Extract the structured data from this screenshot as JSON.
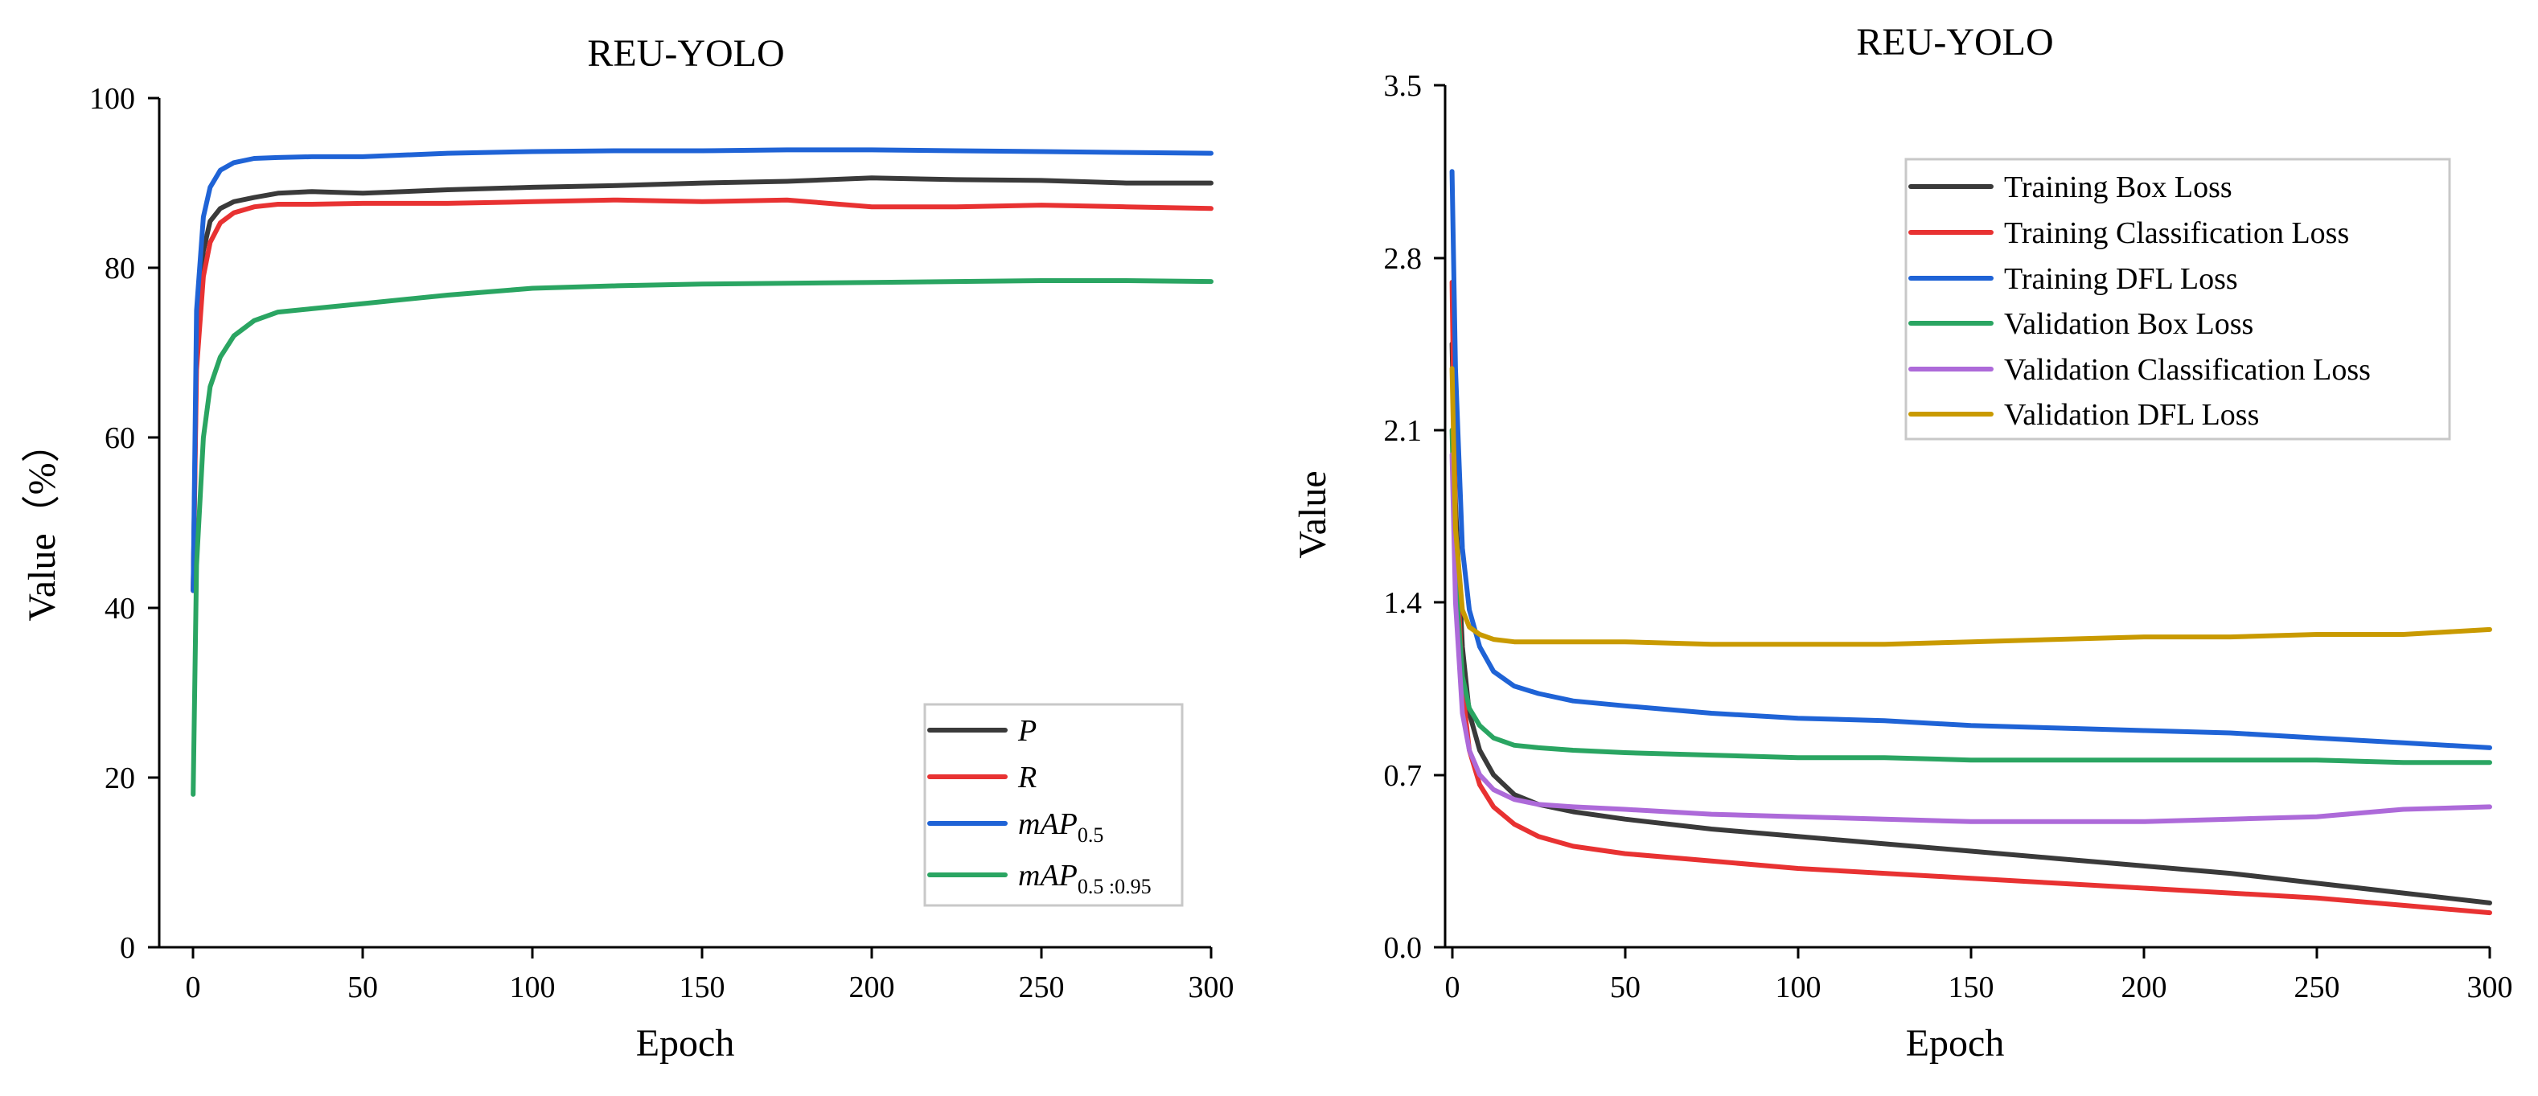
{
  "colors": {
    "P": "#3a3a3a",
    "R": "#e83232",
    "mAP_0_5": "#1f63d6",
    "mAP_0_5_0_95": "#2aa562",
    "training_box_loss": "#3a3a3a",
    "training_classification_loss": "#e83232",
    "training_dfl_loss": "#1f63d6",
    "validation_box_loss": "#2aa562",
    "validation_classification_loss": "#ad6ad9",
    "validation_dfl_loss": "#c99a00"
  },
  "chart_data": [
    {
      "type": "line",
      "title": "REU-YOLO",
      "xlabel": "Epoch",
      "ylabel": "Value（%）",
      "xlim": [
        -10,
        300
      ],
      "ylim": [
        0,
        100
      ],
      "xticks": [
        "0",
        "50",
        "100",
        "150",
        "200",
        "250",
        "300"
      ],
      "yticks": [
        "0",
        "20",
        "40",
        "60",
        "80",
        "100"
      ],
      "legend_position": "bottom-right",
      "legend": [
        {
          "base": "P",
          "sub": ""
        },
        {
          "base": "R",
          "sub": ""
        },
        {
          "base": "mAP",
          "sub": "0.5"
        },
        {
          "base": "mAP",
          "sub": "0.5 :0.95"
        }
      ],
      "series": [
        {
          "name": "P",
          "color_key": "P",
          "x": [
            0,
            1,
            3,
            5,
            8,
            12,
            18,
            25,
            35,
            50,
            75,
            100,
            125,
            150,
            175,
            200,
            225,
            250,
            275,
            300
          ],
          "values": [
            42,
            70,
            82,
            85.5,
            87,
            87.8,
            88.3,
            88.8,
            89,
            88.8,
            89.2,
            89.5,
            89.7,
            90,
            90.2,
            90.6,
            90.4,
            90.3,
            90,
            90
          ]
        },
        {
          "name": "R",
          "color_key": "R",
          "x": [
            0,
            1,
            3,
            5,
            8,
            12,
            18,
            25,
            35,
            50,
            75,
            100,
            125,
            150,
            175,
            200,
            225,
            250,
            275,
            300
          ],
          "values": [
            42,
            68,
            79,
            83,
            85.3,
            86.5,
            87.2,
            87.5,
            87.5,
            87.6,
            87.6,
            87.8,
            88,
            87.8,
            88,
            87.2,
            87.2,
            87.4,
            87.2,
            87
          ]
        },
        {
          "name": "mAP0.5",
          "color_key": "mAP_0_5",
          "x": [
            0,
            1,
            3,
            5,
            8,
            12,
            18,
            25,
            35,
            50,
            75,
            100,
            125,
            150,
            175,
            200,
            225,
            250,
            275,
            300
          ],
          "values": [
            42,
            75,
            86,
            89.5,
            91.5,
            92.4,
            92.9,
            93,
            93.1,
            93.1,
            93.5,
            93.7,
            93.8,
            93.8,
            93.9,
            93.9,
            93.8,
            93.7,
            93.6,
            93.5
          ]
        },
        {
          "name": "mAP0.5:0.95",
          "color_key": "mAP_0_5_0_95",
          "x": [
            0,
            1,
            3,
            5,
            8,
            12,
            18,
            25,
            35,
            50,
            75,
            100,
            125,
            150,
            175,
            200,
            225,
            250,
            275,
            300
          ],
          "values": [
            18,
            45,
            60,
            66,
            69.5,
            72,
            73.8,
            74.8,
            75.2,
            75.8,
            76.8,
            77.6,
            77.9,
            78.1,
            78.2,
            78.3,
            78.4,
            78.5,
            78.5,
            78.4
          ]
        }
      ]
    },
    {
      "type": "line",
      "title": "REU-YOLO",
      "xlabel": "Epoch",
      "ylabel": "Value",
      "xlim": [
        -2,
        300
      ],
      "ylim": [
        0,
        3.5
      ],
      "xticks": [
        "0",
        "50",
        "100",
        "150",
        "200",
        "250",
        "300"
      ],
      "yticks": [
        "0.0",
        "0.7",
        "1.4",
        "2.1",
        "2.8",
        "3.5"
      ],
      "legend_position": "top-right",
      "legend": [
        {
          "base": "Training Box Loss",
          "sub": ""
        },
        {
          "base": "Training Classification Loss",
          "sub": ""
        },
        {
          "base": "Training DFL Loss",
          "sub": ""
        },
        {
          "base": "Validation Box Loss",
          "sub": ""
        },
        {
          "base": "Validation Classification Loss",
          "sub": ""
        },
        {
          "base": "Validation DFL Loss",
          "sub": ""
        }
      ],
      "series": [
        {
          "name": "Training Box Loss",
          "color_key": "training_box_loss",
          "x": [
            0,
            1,
            3,
            5,
            8,
            12,
            18,
            25,
            35,
            50,
            75,
            100,
            125,
            150,
            175,
            200,
            225,
            250,
            275,
            300
          ],
          "values": [
            2.45,
            1.8,
            1.22,
            0.95,
            0.8,
            0.7,
            0.62,
            0.58,
            0.55,
            0.52,
            0.48,
            0.45,
            0.42,
            0.39,
            0.36,
            0.33,
            0.3,
            0.26,
            0.22,
            0.18
          ]
        },
        {
          "name": "Training Classification Loss",
          "color_key": "training_classification_loss",
          "x": [
            0,
            1,
            3,
            5,
            8,
            12,
            18,
            25,
            35,
            50,
            75,
            100,
            125,
            150,
            175,
            200,
            225,
            250,
            275,
            300
          ],
          "values": [
            2.7,
            1.7,
            1.05,
            0.8,
            0.66,
            0.57,
            0.5,
            0.45,
            0.41,
            0.38,
            0.35,
            0.32,
            0.3,
            0.28,
            0.26,
            0.24,
            0.22,
            0.2,
            0.17,
            0.14
          ]
        },
        {
          "name": "Training DFL Loss",
          "color_key": "training_dfl_loss",
          "x": [
            0,
            1,
            3,
            5,
            8,
            12,
            18,
            25,
            35,
            50,
            75,
            100,
            125,
            150,
            175,
            200,
            225,
            250,
            275,
            300
          ],
          "values": [
            3.15,
            2.35,
            1.62,
            1.37,
            1.22,
            1.12,
            1.06,
            1.03,
            1.0,
            0.98,
            0.95,
            0.93,
            0.92,
            0.9,
            0.89,
            0.88,
            0.87,
            0.85,
            0.83,
            0.81
          ]
        },
        {
          "name": "Validation Box Loss",
          "color_key": "validation_box_loss",
          "x": [
            0,
            1,
            3,
            5,
            8,
            12,
            18,
            25,
            35,
            50,
            75,
            100,
            125,
            150,
            175,
            200,
            225,
            250,
            275,
            300
          ],
          "values": [
            2.1,
            1.5,
            1.1,
            0.97,
            0.9,
            0.85,
            0.82,
            0.81,
            0.8,
            0.79,
            0.78,
            0.77,
            0.77,
            0.76,
            0.76,
            0.76,
            0.76,
            0.76,
            0.75,
            0.75
          ]
        },
        {
          "name": "Validation Classification Loss",
          "color_key": "validation_classification_loss",
          "x": [
            0,
            1,
            3,
            5,
            8,
            12,
            18,
            25,
            35,
            50,
            75,
            100,
            125,
            150,
            175,
            200,
            225,
            250,
            275,
            300
          ],
          "values": [
            2.0,
            1.4,
            0.95,
            0.8,
            0.7,
            0.64,
            0.6,
            0.58,
            0.57,
            0.56,
            0.54,
            0.53,
            0.52,
            0.51,
            0.51,
            0.51,
            0.52,
            0.53,
            0.56,
            0.57
          ]
        },
        {
          "name": "Validation DFL Loss",
          "color_key": "validation_dfl_loss",
          "x": [
            0,
            1,
            3,
            5,
            8,
            12,
            18,
            25,
            35,
            50,
            75,
            100,
            125,
            150,
            175,
            200,
            225,
            250,
            275,
            300
          ],
          "values": [
            2.35,
            1.7,
            1.37,
            1.3,
            1.27,
            1.25,
            1.24,
            1.24,
            1.24,
            1.24,
            1.23,
            1.23,
            1.23,
            1.24,
            1.25,
            1.26,
            1.26,
            1.27,
            1.27,
            1.29
          ]
        }
      ]
    }
  ]
}
